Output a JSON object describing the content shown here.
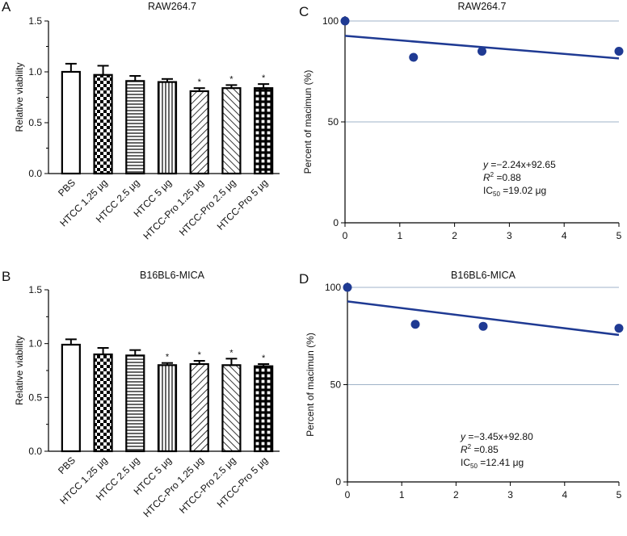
{
  "colors": {
    "fit_line": "#1f3a93",
    "points": "#1f3a93",
    "grid": "#9fb3c8",
    "bar_edge": "#000000"
  },
  "panels": [
    {
      "letter": "A",
      "title": "RAW264.7",
      "ylabel": "Relative viability",
      "yticks": [
        "0.0",
        "0.5",
        "1.0",
        "1.5"
      ],
      "categories": [
        "PBS",
        "HTCC 1.25 μg",
        "HTCC 2.5 μg",
        "HTCC 5 μg",
        "HTCC-Pro 1.25 μg",
        "HTCC-Pro 2.5 μg",
        "HTCC-Pro 5 μg"
      ],
      "star": "*"
    },
    {
      "letter": "B",
      "title": "B16BL6-MICA",
      "ylabel": "Relative viability",
      "yticks": [
        "0.0",
        "0.5",
        "1.0",
        "1.5"
      ],
      "categories": [
        "PBS",
        "HTCC 1.25 μg",
        "HTCC 2.5 μg",
        "HTCC 5 μg",
        "HTCC-Pro 1.25 μg",
        "HTCC-Pro 2.5 μg",
        "HTCC-Pro 5 μg"
      ],
      "star": "*"
    },
    {
      "letter": "C",
      "title": "RAW264.7",
      "ylabel": "Percent of macimun (%)",
      "xticks": [
        "0",
        "1",
        "2",
        "3",
        "4",
        "5"
      ],
      "yticks": [
        "0",
        "50",
        "100"
      ],
      "equation": {
        "y": "y",
        "rest": " =−2.24x+92.65"
      },
      "r2": {
        "base": "R",
        "sup": "2",
        "rest": " =0.88"
      },
      "ic50": {
        "base": "IC",
        "sub": "50",
        "rest": " =19.02 μg"
      }
    },
    {
      "letter": "D",
      "title": "B16BL6-MICA",
      "ylabel": "Percent of macimun (%)",
      "xticks": [
        "0",
        "1",
        "2",
        "3",
        "4",
        "5"
      ],
      "yticks": [
        "0",
        "50",
        "100"
      ],
      "equation": {
        "y": "y",
        "rest": " =−3.45x+92.80"
      },
      "r2": {
        "base": "R",
        "sup": "2",
        "rest": " =0.85"
      },
      "ic50": {
        "base": "IC",
        "sub": "50",
        "rest": " =12.41 μg"
      }
    }
  ],
  "chart_data": [
    {
      "type": "bar",
      "title": "RAW264.7",
      "ylabel": "Relative viability",
      "ylim": [
        0,
        1.5
      ],
      "categories": [
        "PBS",
        "HTCC 1.25 μg",
        "HTCC 2.5 μg",
        "HTCC 5 μg",
        "HTCC-Pro 1.25 μg",
        "HTCC-Pro 2.5 μg",
        "HTCC-Pro 5 μg"
      ],
      "values": [
        1.0,
        0.97,
        0.91,
        0.9,
        0.81,
        0.84,
        0.84
      ],
      "errors": [
        0.08,
        0.09,
        0.05,
        0.03,
        0.03,
        0.03,
        0.04
      ],
      "patterns": [
        "blank",
        "checker",
        "hlines",
        "vlines",
        "diag-right",
        "diag-left",
        "grid"
      ],
      "significant": [
        false,
        false,
        false,
        false,
        true,
        true,
        true
      ]
    },
    {
      "type": "bar",
      "title": "B16BL6-MICA",
      "ylabel": "Relative viability",
      "ylim": [
        0,
        1.5
      ],
      "categories": [
        "PBS",
        "HTCC 1.25 μg",
        "HTCC 2.5 μg",
        "HTCC 5 μg",
        "HTCC-Pro 1.25 μg",
        "HTCC-Pro 2.5 μg",
        "HTCC-Pro 5 μg"
      ],
      "values": [
        0.99,
        0.9,
        0.89,
        0.8,
        0.81,
        0.8,
        0.79
      ],
      "errors": [
        0.05,
        0.06,
        0.05,
        0.02,
        0.03,
        0.06,
        0.02
      ],
      "patterns": [
        "blank",
        "checker",
        "hlines",
        "vlines",
        "diag-right",
        "diag-left",
        "grid"
      ],
      "significant": [
        false,
        false,
        false,
        true,
        true,
        true,
        true
      ]
    },
    {
      "type": "scatter",
      "title": "RAW264.7",
      "ylabel": "Percent of macimun (%)",
      "xlim": [
        0,
        5
      ],
      "ylim": [
        0,
        100
      ],
      "x": [
        0,
        1.25,
        2.5,
        5
      ],
      "y": [
        100,
        82,
        85,
        85
      ],
      "fit": {
        "slope": -2.24,
        "intercept": 92.65
      }
    },
    {
      "type": "scatter",
      "title": "B16BL6-MICA",
      "ylabel": "Percent of macimun (%)",
      "xlim": [
        0,
        5
      ],
      "ylim": [
        0,
        100
      ],
      "x": [
        0,
        1.25,
        2.5,
        5
      ],
      "y": [
        100,
        81,
        80,
        79
      ],
      "fit": {
        "slope": -3.45,
        "intercept": 92.8
      }
    }
  ]
}
